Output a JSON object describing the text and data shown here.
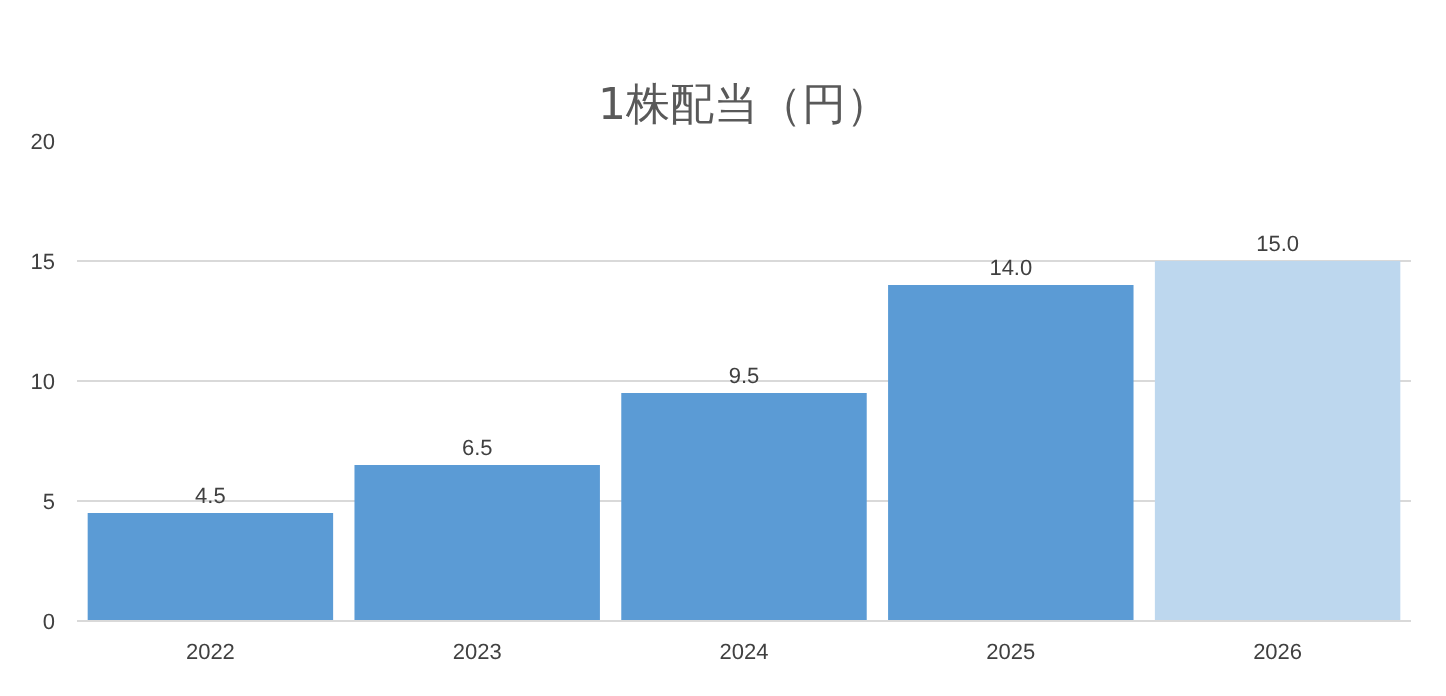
{
  "chart_data": {
    "type": "bar",
    "title": "1株配当（円）",
    "categories": [
      "2022",
      "2023",
      "2024",
      "2025",
      "2026"
    ],
    "values": [
      4.5,
      6.5,
      9.5,
      14.0,
      15.0
    ],
    "colors": [
      "#5b9bd5",
      "#5b9bd5",
      "#5b9bd5",
      "#5b9bd5",
      "#bdd7ee"
    ],
    "value_labels": [
      "4.5",
      "6.5",
      "9.5",
      "14.0",
      "15.0"
    ],
    "ylim": [
      0,
      20
    ],
    "yticks": [
      0,
      5,
      10,
      15,
      20
    ],
    "grid": "y"
  }
}
